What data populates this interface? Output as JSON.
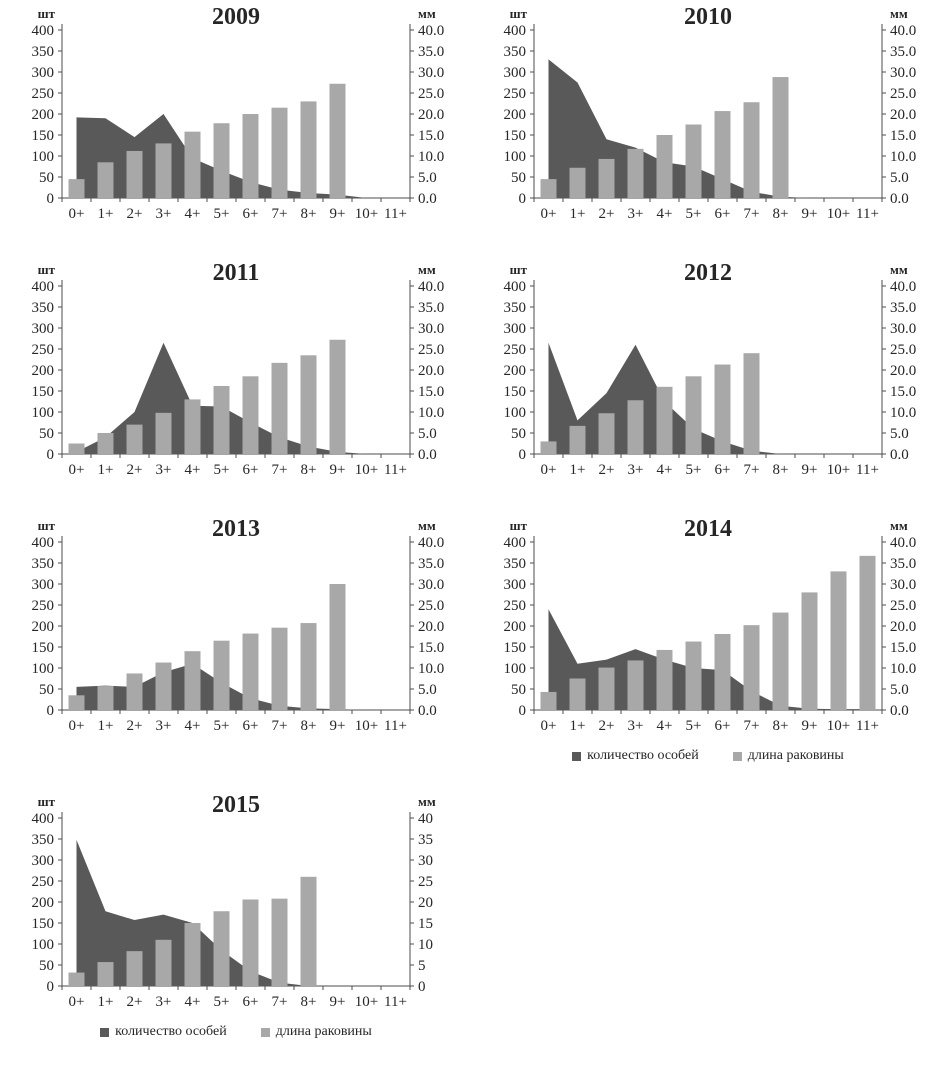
{
  "figure": {
    "background": "#ffffff",
    "description_units": {
      "left_unit": "шт",
      "right_unit": "мм"
    }
  },
  "colors": {
    "area_series": "#595959",
    "bar_series": "#a8a8a8",
    "axis_line": "#4d4d4d",
    "label_text": "#262626"
  },
  "legend": {
    "items": [
      {
        "name": "count-series",
        "label": "количество особей",
        "color": "#595959"
      },
      {
        "name": "length-series",
        "label": "длина раковины",
        "color": "#a8a8a8"
      }
    ]
  },
  "axes_shared": {
    "left_unit": "шт",
    "right_unit": "мм",
    "left_tick_labels": [
      "400",
      "350",
      "300",
      "250",
      "200",
      "150",
      "100",
      "50",
      "0"
    ],
    "ylim_left": [
      0,
      400
    ],
    "ylim_right": [
      0,
      40
    ]
  },
  "chart_data": [
    {
      "type": "combo-area-bar",
      "title": "2009",
      "show_legend": false,
      "categories": [
        "0+",
        "1+",
        "2+",
        "3+",
        "4+",
        "5+",
        "6+",
        "7+",
        "8+",
        "9+",
        "10+",
        "11+"
      ],
      "right_tick_labels": [
        "40.0",
        "35.0",
        "30.0",
        "25.0",
        "20.0",
        "15.0",
        "10.0",
        "5.0",
        "0.0"
      ],
      "series": [
        {
          "name": "количество особей",
          "type": "area",
          "axis": "left",
          "unit": "шт",
          "values": [
            192,
            190,
            145,
            200,
            95,
            65,
            38,
            20,
            12,
            8,
            0,
            0
          ]
        },
        {
          "name": "длина раковины",
          "type": "bar",
          "axis": "right",
          "unit": "мм",
          "values": [
            4.5,
            8.5,
            11.2,
            13.0,
            15.8,
            17.8,
            20.0,
            21.5,
            23.0,
            27.2,
            0,
            0
          ]
        }
      ]
    },
    {
      "type": "combo-area-bar",
      "title": "2010",
      "show_legend": false,
      "categories": [
        "0+",
        "1+",
        "2+",
        "3+",
        "4+",
        "5+",
        "6+",
        "7+",
        "8+",
        "9+",
        "10+",
        "11+"
      ],
      "right_tick_labels": [
        "40.0",
        "35.0",
        "30.0",
        "25.0",
        "20.0",
        "15.0",
        "10.0",
        "5.0",
        "0.0"
      ],
      "series": [
        {
          "name": "количество особей",
          "type": "area",
          "axis": "left",
          "unit": "шт",
          "values": [
            330,
            275,
            140,
            120,
            85,
            75,
            45,
            15,
            3,
            0,
            0,
            0
          ]
        },
        {
          "name": "длина раковины",
          "type": "bar",
          "axis": "right",
          "unit": "мм",
          "values": [
            4.5,
            7.2,
            9.3,
            11.7,
            15.0,
            17.5,
            20.7,
            22.8,
            28.8,
            0,
            0,
            0
          ]
        }
      ]
    },
    {
      "type": "combo-area-bar",
      "title": "2011",
      "show_legend": false,
      "categories": [
        "0+",
        "1+",
        "2+",
        "3+",
        "4+",
        "5+",
        "6+",
        "7+",
        "8+",
        "9+",
        "10+",
        "11+"
      ],
      "right_tick_labels": [
        "40.0",
        "35.0",
        "30.0",
        "25.0",
        "20.0",
        "15.0",
        "10.0",
        "5.0",
        "0.0"
      ],
      "series": [
        {
          "name": "количество особей",
          "type": "area",
          "axis": "left",
          "unit": "шт",
          "values": [
            5,
            40,
            100,
            265,
            115,
            113,
            75,
            40,
            18,
            5,
            0,
            0
          ]
        },
        {
          "name": "длина раковины",
          "type": "bar",
          "axis": "right",
          "unit": "мм",
          "values": [
            2.5,
            5.0,
            7.0,
            9.8,
            13.0,
            16.2,
            18.5,
            21.7,
            23.5,
            27.2,
            0,
            0
          ]
        }
      ]
    },
    {
      "type": "combo-area-bar",
      "title": "2012",
      "show_legend": false,
      "categories": [
        "0+",
        "1+",
        "2+",
        "3+",
        "4+",
        "5+",
        "6+",
        "7+",
        "8+",
        "9+",
        "10+",
        "11+"
      ],
      "right_tick_labels": [
        "40.0",
        "35.0",
        "30.0",
        "25.0",
        "20.0",
        "15.0",
        "10.0",
        "5.0",
        "0.0"
      ],
      "series": [
        {
          "name": "количество особей",
          "type": "area",
          "axis": "left",
          "unit": "шт",
          "values": [
            265,
            80,
            145,
            260,
            125,
            60,
            30,
            8,
            0,
            0,
            0,
            0
          ]
        },
        {
          "name": "длина раковины",
          "type": "bar",
          "axis": "right",
          "unit": "мм",
          "values": [
            3.0,
            6.7,
            9.7,
            12.8,
            16.0,
            18.5,
            21.3,
            24.0,
            0,
            0,
            0,
            0
          ]
        }
      ]
    },
    {
      "type": "combo-area-bar",
      "title": "2013",
      "show_legend": false,
      "categories": [
        "0+",
        "1+",
        "2+",
        "3+",
        "4+",
        "5+",
        "6+",
        "7+",
        "8+",
        "9+",
        "10+",
        "11+"
      ],
      "right_tick_labels": [
        "40.0",
        "35.0",
        "30.0",
        "25.0",
        "20.0",
        "15.0",
        "10.0",
        "5.0",
        "0.0"
      ],
      "series": [
        {
          "name": "количество особей",
          "type": "area",
          "axis": "left",
          "unit": "шт",
          "values": [
            55,
            58,
            55,
            90,
            110,
            65,
            28,
            10,
            4,
            2,
            0,
            0
          ]
        },
        {
          "name": "длина раковины",
          "type": "bar",
          "axis": "right",
          "unit": "мм",
          "values": [
            3.5,
            5.7,
            8.7,
            11.3,
            14.0,
            16.5,
            18.2,
            19.6,
            20.7,
            30.0,
            0,
            0
          ]
        }
      ]
    },
    {
      "type": "combo-area-bar",
      "title": "2014",
      "show_legend": true,
      "categories": [
        "0+",
        "1+",
        "2+",
        "3+",
        "4+",
        "5+",
        "6+",
        "7+",
        "8+",
        "9+",
        "10+",
        "11+"
      ],
      "right_tick_labels": [
        "40.0",
        "35.0",
        "30.0",
        "25.0",
        "20.0",
        "15.0",
        "10.0",
        "5.0",
        "0.0"
      ],
      "series": [
        {
          "name": "количество особей",
          "type": "area",
          "axis": "left",
          "unit": "шт",
          "values": [
            240,
            110,
            120,
            145,
            120,
            100,
            95,
            45,
            10,
            3,
            2,
            2
          ]
        },
        {
          "name": "длина раковины",
          "type": "bar",
          "axis": "right",
          "unit": "мм",
          "values": [
            4.3,
            7.5,
            10.1,
            11.8,
            14.3,
            16.3,
            18.1,
            20.2,
            23.2,
            28.0,
            33.0,
            36.7
          ]
        }
      ]
    },
    {
      "type": "combo-area-bar",
      "title": "2015",
      "show_legend": true,
      "categories": [
        "0+",
        "1+",
        "2+",
        "3+",
        "4+",
        "5+",
        "6+",
        "7+",
        "8+",
        "9+",
        "10+",
        "11+"
      ],
      "right_tick_labels": [
        "40",
        "35",
        "30",
        "25",
        "20",
        "15",
        "10",
        "5",
        "0"
      ],
      "series": [
        {
          "name": "количество особей",
          "type": "area",
          "axis": "left",
          "unit": "шт",
          "values": [
            348,
            178,
            157,
            170,
            150,
            85,
            35,
            8,
            0,
            0,
            0,
            0
          ]
        },
        {
          "name": "длина раковины",
          "type": "bar",
          "axis": "right",
          "unit": "мм",
          "values": [
            3.2,
            5.7,
            8.3,
            11.0,
            15.0,
            17.8,
            20.6,
            20.8,
            26.0,
            0,
            0,
            0
          ]
        }
      ]
    }
  ]
}
